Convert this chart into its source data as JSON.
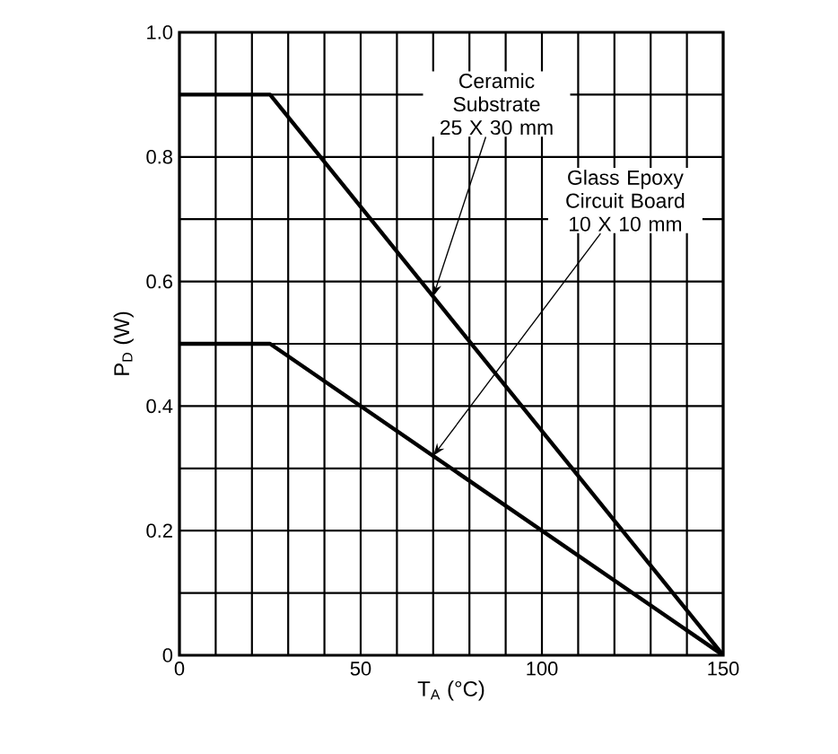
{
  "chart_data": {
    "type": "line",
    "xlabel": "T$_{A}$ (°C)",
    "ylabel": "P$_{D}$ (W)",
    "xlim": [
      0,
      150
    ],
    "xticks": [
      0,
      50,
      100,
      150
    ],
    "ylim": [
      0,
      1.0
    ],
    "yticks": [
      0,
      0.2,
      0.4,
      0.6,
      0.8,
      {
        "value": 1.0,
        "label": "1.0"
      }
    ],
    "grid": true,
    "marker": "none",
    "line_style": "solid",
    "series": [
      {
        "color": "#000000",
        "x": [
          0,
          25,
          150
        ],
        "values": [
          0.9,
          0.9,
          0
        ]
      },
      {
        "color": "#000000",
        "x": [
          0,
          25,
          150
        ],
        "values": [
          0.5,
          0.5,
          0
        ]
      }
    ],
    "annotations": [
      {
        "text": "Ceramic Substrate 25 X 30 mm",
        "x": 70,
        "y": 0.576
      },
      {
        "text": "Glass Epoxy Circuit Board 10 X 10 mm",
        "x": 70,
        "y": 0.32
      }
    ]
  }
}
